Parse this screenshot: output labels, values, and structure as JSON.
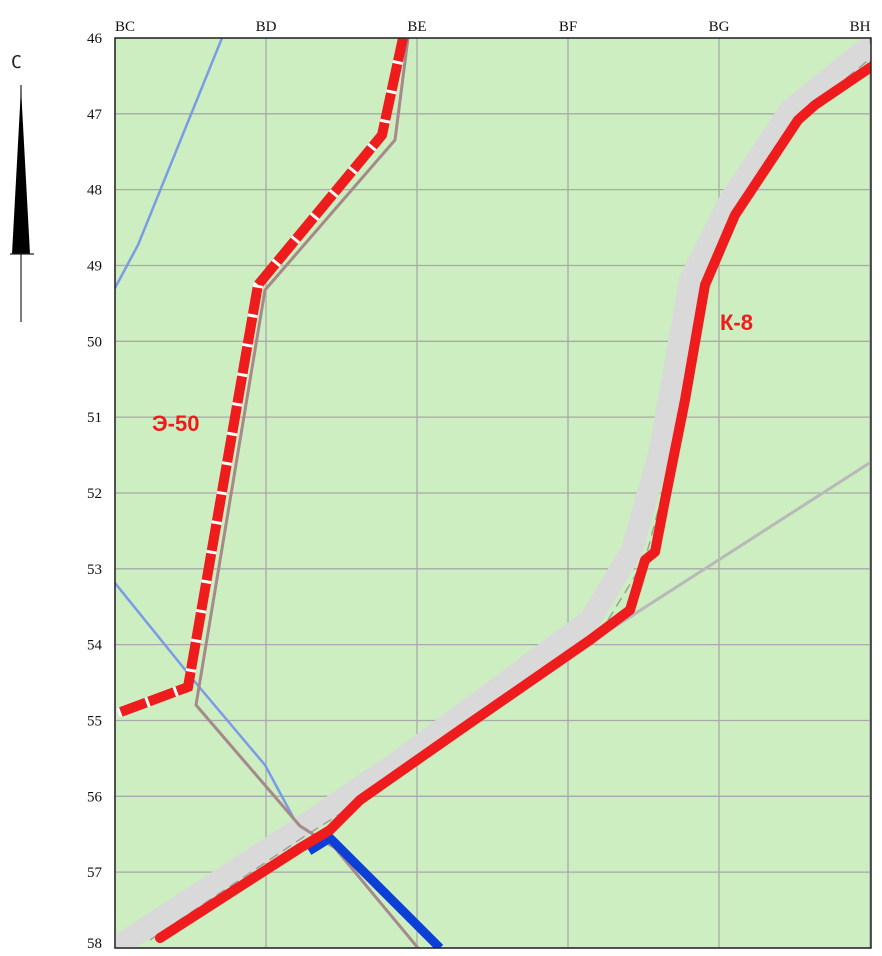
{
  "map": {
    "background_color": "#cdeec1",
    "grid_color": "#a9a9a9",
    "columns": [
      "BC",
      "BD",
      "BE",
      "BF",
      "BG",
      "BH"
    ],
    "rows": [
      "46",
      "47",
      "48",
      "49",
      "50",
      "51",
      "52",
      "53",
      "54",
      "55",
      "56",
      "57",
      "58"
    ]
  },
  "north_arrow": {
    "letter": "С"
  },
  "routes": [
    {
      "id": "E-50",
      "label": "Э-50",
      "color": "#ee1c1c",
      "style": "dashed"
    },
    {
      "id": "K-8",
      "label": "К-8",
      "color": "#ee1c1c",
      "style": "solid"
    },
    {
      "id": "blue-route",
      "label": "",
      "color": "#0b3fd6",
      "style": "solid"
    }
  ],
  "colors": {
    "road_casing": "#d9d9d9",
    "road_edge": "#9e9e9e",
    "brown_line": "#a6898a",
    "water_line": "#7b9be6",
    "railway_line": "#b9b9b9"
  }
}
